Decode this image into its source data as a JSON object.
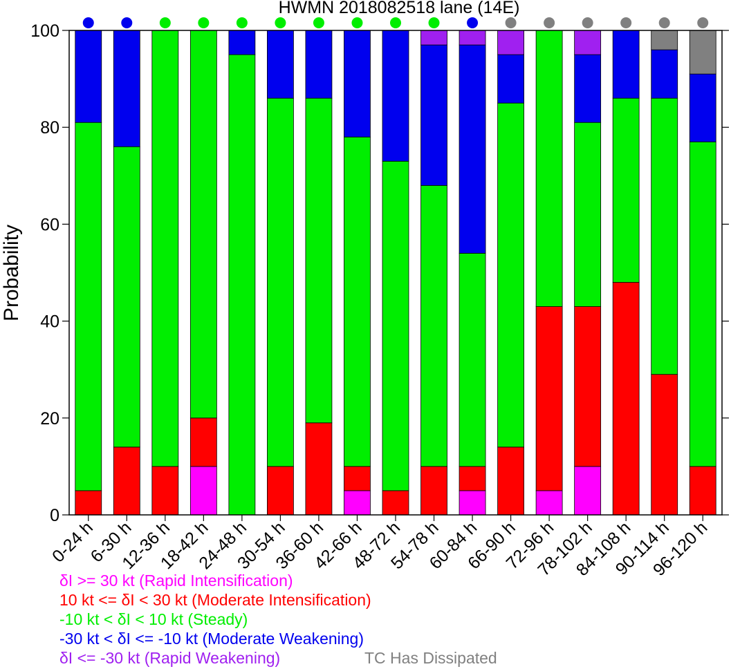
{
  "chart_data": {
    "type": "bar",
    "stacked": true,
    "title": "HWMN 2018082518 lane (14E)",
    "ylabel": "Probability",
    "xlabel": "",
    "ylim": [
      0,
      100
    ],
    "yticks": [
      0,
      20,
      40,
      60,
      80,
      100
    ],
    "categories": [
      "0-24 h",
      "6-30 h",
      "12-36 h",
      "18-42 h",
      "24-48 h",
      "30-54 h",
      "36-60 h",
      "42-66 h",
      "48-72 h",
      "54-78 h",
      "60-84 h",
      "66-90 h",
      "72-96 h",
      "78-102 h",
      "84-108 h",
      "90-114 h",
      "96-120 h"
    ],
    "series": [
      {
        "key": "ri",
        "color": "#ff00ff",
        "values": [
          0,
          0,
          0,
          10,
          0,
          0,
          0,
          5,
          0,
          0,
          5,
          0,
          5,
          10,
          0,
          0,
          0
        ]
      },
      {
        "key": "mi",
        "color": "#ff0000",
        "values": [
          5,
          14,
          10,
          10,
          0,
          10,
          19,
          5,
          5,
          10,
          5,
          14,
          38,
          33,
          48,
          29,
          10
        ]
      },
      {
        "key": "st",
        "color": "#00ee00",
        "values": [
          76,
          62,
          90,
          80,
          95,
          76,
          67,
          68,
          68,
          58,
          44,
          71,
          57,
          38,
          38,
          57,
          67
        ]
      },
      {
        "key": "mw",
        "color": "#0000ee",
        "values": [
          19,
          24,
          0,
          0,
          5,
          14,
          14,
          22,
          27,
          29,
          43,
          10,
          0,
          14,
          14,
          10,
          14
        ]
      },
      {
        "key": "rw",
        "color": "#a020f0",
        "values": [
          0,
          0,
          0,
          0,
          0,
          0,
          0,
          0,
          0,
          3,
          3,
          5,
          0,
          5,
          0,
          0,
          0
        ]
      },
      {
        "key": "diss",
        "color": "#808080",
        "values": [
          0,
          0,
          0,
          0,
          0,
          0,
          0,
          0,
          0,
          0,
          0,
          0,
          0,
          0,
          0,
          4,
          9
        ]
      }
    ],
    "top_dots": [
      "#0000ee",
      "#0000ee",
      "#00ee00",
      "#00ee00",
      "#00ee00",
      "#00ee00",
      "#00ee00",
      "#00ee00",
      "#00ee00",
      "#00ee00",
      "#0000ee",
      "#808080",
      "#808080",
      "#808080",
      "#808080",
      "#808080",
      "#808080"
    ],
    "grid": false
  },
  "legend": {
    "ri": {
      "text": "δI >= 30 kt (Rapid Intensification)",
      "color": "#ff00ff"
    },
    "mi": {
      "text": "10 kt <= δI < 30 kt (Moderate Intensification)",
      "color": "#ff0000"
    },
    "st": {
      "text": "-10 kt < δI < 10 kt (Steady)",
      "color": "#00ee00"
    },
    "mw": {
      "text": "-30 kt < δI <= -10 kt (Moderate Weakening)",
      "color": "#0000ee"
    },
    "rw": {
      "text": "δI <= -30 kt (Rapid Weakening)",
      "color": "#a020f0"
    },
    "diss": {
      "text": "TC Has Dissipated",
      "color": "#808080"
    }
  }
}
